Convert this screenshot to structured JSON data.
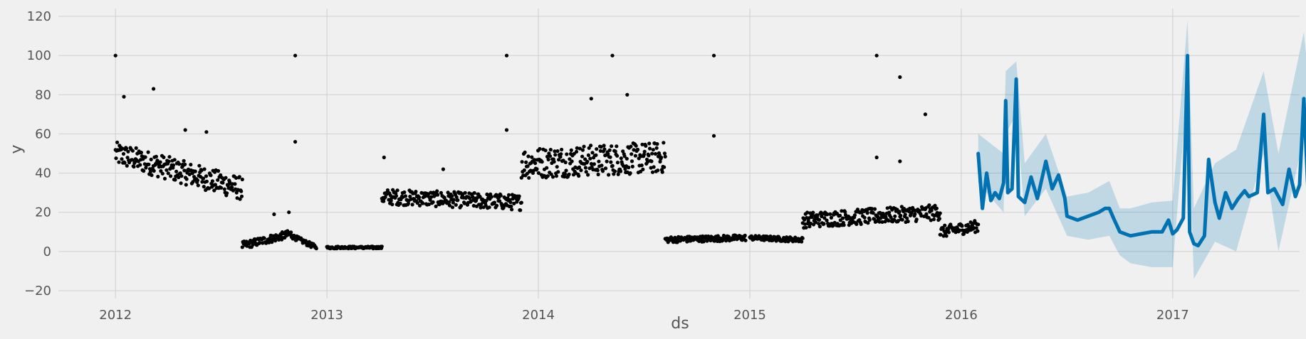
{
  "chart_data": {
    "type": "scatter",
    "title": "",
    "xlabel": "ds",
    "ylabel": "y",
    "x_range": [
      2011.73,
      2017.6
    ],
    "ylim": [
      -24,
      124
    ],
    "grid": true,
    "x_ticks": [
      {
        "value": 2012,
        "label": "2012"
      },
      {
        "value": 2013,
        "label": "2013"
      },
      {
        "value": 2014,
        "label": "2014"
      },
      {
        "value": 2015,
        "label": "2015"
      },
      {
        "value": 2016,
        "label": "2016"
      },
      {
        "value": 2017,
        "label": "2017"
      }
    ],
    "y_ticks": [
      {
        "value": -20,
        "label": "−20"
      },
      {
        "value": 0,
        "label": "0"
      },
      {
        "value": 20,
        "label": "20"
      },
      {
        "value": 40,
        "label": "40"
      },
      {
        "value": 60,
        "label": "60"
      },
      {
        "value": 80,
        "label": "80"
      },
      {
        "value": 100,
        "label": "100"
      },
      {
        "value": 120,
        "label": "120"
      }
    ],
    "series": [
      {
        "name": "Observed",
        "kind": "points",
        "color": "#000000",
        "segments": [
          {
            "start": 2012.0,
            "end": 2012.6,
            "base": [
              50,
              32
            ],
            "spread": 6
          },
          {
            "start": 2012.6,
            "end": 2012.83,
            "base": [
              3,
              9
            ],
            "spread": 2
          },
          {
            "start": 2012.83,
            "end": 2012.95,
            "base": [
              8,
              2
            ],
            "spread": 1.2
          },
          {
            "start": 2013.0,
            "end": 2013.26,
            "base": [
              2,
              2
            ],
            "spread": 0.6
          },
          {
            "start": 2013.26,
            "end": 2013.92,
            "base": [
              28,
              25
            ],
            "spread": 4
          },
          {
            "start": 2013.92,
            "end": 2014.6,
            "base": [
              45,
              48
            ],
            "spread": 8
          },
          {
            "start": 2014.6,
            "end": 2014.98,
            "base": [
              6,
              7
            ],
            "spread": 1.5
          },
          {
            "start": 2015.0,
            "end": 2015.25,
            "base": [
              7,
              6
            ],
            "spread": 1.2
          },
          {
            "start": 2015.25,
            "end": 2015.9,
            "base": [
              16,
              20
            ],
            "spread": 4
          },
          {
            "start": 2015.9,
            "end": 2016.08,
            "base": [
              10,
              13
            ],
            "spread": 3
          }
        ],
        "outliers": [
          {
            "x": 2012.0,
            "y": 100
          },
          {
            "x": 2012.18,
            "y": 83
          },
          {
            "x": 2012.04,
            "y": 79
          },
          {
            "x": 2012.33,
            "y": 62
          },
          {
            "x": 2012.43,
            "y": 61
          },
          {
            "x": 2012.85,
            "y": 100
          },
          {
            "x": 2012.85,
            "y": 56
          },
          {
            "x": 2012.75,
            "y": 19
          },
          {
            "x": 2012.82,
            "y": 20
          },
          {
            "x": 2013.27,
            "y": 48
          },
          {
            "x": 2013.55,
            "y": 42
          },
          {
            "x": 2013.85,
            "y": 100
          },
          {
            "x": 2013.85,
            "y": 62
          },
          {
            "x": 2014.35,
            "y": 100
          },
          {
            "x": 2014.42,
            "y": 80
          },
          {
            "x": 2014.25,
            "y": 78
          },
          {
            "x": 2014.83,
            "y": 100
          },
          {
            "x": 2014.83,
            "y": 59
          },
          {
            "x": 2015.6,
            "y": 100
          },
          {
            "x": 2015.71,
            "y": 89
          },
          {
            "x": 2015.83,
            "y": 70
          },
          {
            "x": 2015.6,
            "y": 48
          },
          {
            "x": 2015.71,
            "y": 46
          }
        ]
      },
      {
        "name": "Forecast",
        "kind": "line",
        "color": "#0072B2",
        "points": [
          [
            2016.08,
            50
          ],
          [
            2016.1,
            22
          ],
          [
            2016.12,
            40
          ],
          [
            2016.14,
            26
          ],
          [
            2016.16,
            30
          ],
          [
            2016.18,
            27
          ],
          [
            2016.2,
            35
          ],
          [
            2016.21,
            77
          ],
          [
            2016.22,
            30
          ],
          [
            2016.24,
            32
          ],
          [
            2016.26,
            88
          ],
          [
            2016.27,
            28
          ],
          [
            2016.3,
            25
          ],
          [
            2016.33,
            38
          ],
          [
            2016.36,
            27
          ],
          [
            2016.4,
            46
          ],
          [
            2016.43,
            32
          ],
          [
            2016.46,
            39
          ],
          [
            2016.49,
            27
          ],
          [
            2016.5,
            18
          ],
          [
            2016.55,
            16
          ],
          [
            2016.6,
            18
          ],
          [
            2016.65,
            20
          ],
          [
            2016.68,
            22
          ],
          [
            2016.7,
            22
          ],
          [
            2016.72,
            17
          ],
          [
            2016.75,
            10
          ],
          [
            2016.8,
            8
          ],
          [
            2016.85,
            9
          ],
          [
            2016.9,
            10
          ],
          [
            2016.95,
            10
          ],
          [
            2016.98,
            16
          ],
          [
            2017.0,
            9
          ],
          [
            2017.02,
            11
          ],
          [
            2017.05,
            17
          ],
          [
            2017.07,
            100
          ],
          [
            2017.08,
            10
          ],
          [
            2017.1,
            4
          ],
          [
            2017.12,
            3
          ],
          [
            2017.15,
            8
          ],
          [
            2017.17,
            47
          ],
          [
            2017.2,
            25
          ],
          [
            2017.22,
            17
          ],
          [
            2017.25,
            30
          ],
          [
            2017.28,
            22
          ],
          [
            2017.31,
            27
          ],
          [
            2017.34,
            31
          ],
          [
            2017.36,
            28
          ],
          [
            2017.4,
            30
          ],
          [
            2017.43,
            70
          ],
          [
            2017.45,
            30
          ],
          [
            2017.48,
            32
          ],
          [
            2017.52,
            24
          ],
          [
            2017.55,
            42
          ],
          [
            2017.58,
            28
          ],
          [
            2017.6,
            34
          ],
          [
            2017.62,
            78
          ],
          [
            2017.64,
            30
          ],
          [
            2017.66,
            44
          ],
          [
            2017.67,
            35
          ]
        ]
      },
      {
        "name": "Uncertainty interval",
        "kind": "band",
        "color": "#0072B2",
        "points": [
          [
            2016.08,
            35,
            60
          ],
          [
            2016.2,
            20,
            50
          ],
          [
            2016.21,
            60,
            92
          ],
          [
            2016.26,
            70,
            97
          ],
          [
            2016.3,
            18,
            45
          ],
          [
            2016.4,
            32,
            60
          ],
          [
            2016.5,
            8,
            28
          ],
          [
            2016.6,
            6,
            30
          ],
          [
            2016.7,
            8,
            36
          ],
          [
            2016.75,
            -2,
            22
          ],
          [
            2016.8,
            -6,
            22
          ],
          [
            2016.9,
            -8,
            25
          ],
          [
            2017.0,
            -8,
            26
          ],
          [
            2017.07,
            85,
            118
          ],
          [
            2017.1,
            -14,
            22
          ],
          [
            2017.2,
            5,
            45
          ],
          [
            2017.3,
            0,
            52
          ],
          [
            2017.43,
            50,
            92
          ],
          [
            2017.5,
            0,
            50
          ],
          [
            2017.62,
            58,
            112
          ],
          [
            2017.67,
            10,
            60
          ]
        ]
      }
    ]
  }
}
